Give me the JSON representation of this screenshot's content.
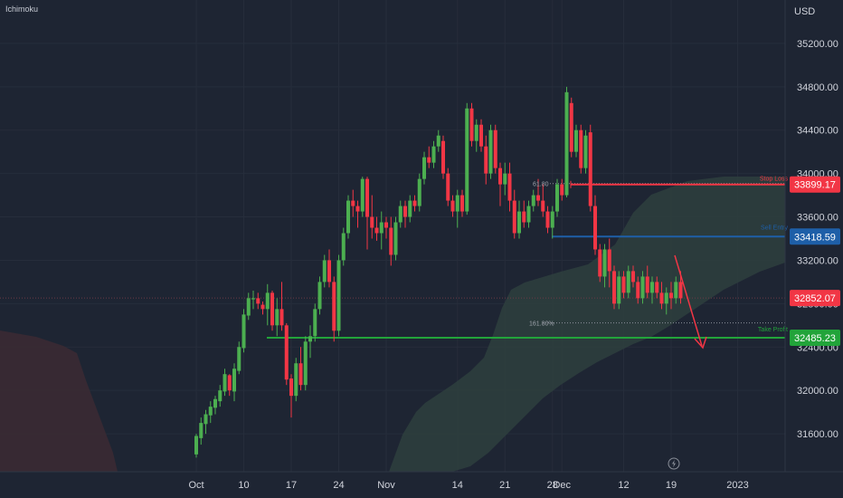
{
  "indicator_name": "Ichimoku",
  "currency": "USD",
  "chart_data": {
    "type": "candlestick",
    "y_range": [
      31250,
      35600
    ],
    "y_ticks": [
      "35200.00",
      "34800.00",
      "34400.00",
      "34000.00",
      "33600.00",
      "33200.00",
      "32800.00",
      "32400.00",
      "32000.00",
      "31600.00"
    ],
    "y_tick_values": [
      35200,
      34800,
      34400,
      34000,
      33600,
      33200,
      32800,
      32400,
      32000,
      31600
    ],
    "x_ticks": [
      {
        "label": "Oct",
        "bar": 0
      },
      {
        "label": "10",
        "bar": 10
      },
      {
        "label": "17",
        "bar": 20
      },
      {
        "label": "24",
        "bar": 30
      },
      {
        "label": "Nov",
        "bar": 40
      },
      {
        "label": "14",
        "bar": 55
      },
      {
        "label": "21",
        "bar": 65
      },
      {
        "label": "28",
        "bar": 75
      },
      {
        "label": "Dec",
        "bar": 77
      },
      {
        "label": "12",
        "bar": 90
      },
      {
        "label": "19",
        "bar": 100
      },
      {
        "label": "2023",
        "bar": 114
      }
    ],
    "candles": [
      [
        31410,
        31600,
        31380,
        31580
      ],
      [
        31560,
        31750,
        31500,
        31700
      ],
      [
        31690,
        31820,
        31600,
        31780
      ],
      [
        31770,
        31900,
        31700,
        31850
      ],
      [
        31840,
        31950,
        31780,
        31920
      ],
      [
        31900,
        32050,
        31850,
        32000
      ],
      [
        31990,
        32200,
        31950,
        32150
      ],
      [
        32140,
        32150,
        31950,
        32000
      ],
      [
        31990,
        32250,
        31900,
        32200
      ],
      [
        32180,
        32450,
        32150,
        32400
      ],
      [
        32390,
        32750,
        32350,
        32700
      ],
      [
        32690,
        32900,
        32650,
        32850
      ],
      [
        32840,
        32920,
        32750,
        32850
      ],
      [
        32850,
        32900,
        32750,
        32800
      ],
      [
        32790,
        32820,
        32700,
        32750
      ],
      [
        32750,
        32980,
        32600,
        32900
      ],
      [
        32900,
        32920,
        32550,
        32600
      ],
      [
        32600,
        32850,
        32500,
        32750
      ],
      [
        32750,
        33000,
        32550,
        32600
      ],
      [
        32600,
        32620,
        32050,
        32100
      ],
      [
        32110,
        32150,
        31750,
        31950
      ],
      [
        31950,
        32300,
        31900,
        32250
      ],
      [
        32250,
        32400,
        32000,
        32050
      ],
      [
        32050,
        32500,
        32000,
        32450
      ],
      [
        32450,
        32600,
        32300,
        32500
      ],
      [
        32500,
        32800,
        32450,
        32750
      ],
      [
        32750,
        33050,
        32700,
        33000
      ],
      [
        33000,
        33250,
        32950,
        33200
      ],
      [
        33200,
        33300,
        32950,
        33000
      ],
      [
        33000,
        33050,
        32450,
        32550
      ],
      [
        32550,
        33250,
        32500,
        33200
      ],
      [
        33200,
        33500,
        33150,
        33450
      ],
      [
        33450,
        33800,
        33400,
        33750
      ],
      [
        33750,
        33850,
        33600,
        33700
      ],
      [
        33700,
        33750,
        33500,
        33650
      ],
      [
        33650,
        33970,
        33600,
        33950
      ],
      [
        33950,
        33970,
        33300,
        33600
      ],
      [
        33600,
        33800,
        33400,
        33500
      ],
      [
        33500,
        33600,
        33380,
        33450
      ],
      [
        33450,
        33650,
        33300,
        33550
      ],
      [
        33550,
        33600,
        33400,
        33500
      ],
      [
        33500,
        33600,
        33150,
        33250
      ],
      [
        33250,
        33600,
        33200,
        33550
      ],
      [
        33550,
        33750,
        33500,
        33700
      ],
      [
        33700,
        33750,
        33500,
        33600
      ],
      [
        33600,
        33800,
        33550,
        33750
      ],
      [
        33750,
        33800,
        33650,
        33700
      ],
      [
        33700,
        34000,
        33650,
        33950
      ],
      [
        33950,
        34200,
        33900,
        34150
      ],
      [
        34150,
        34250,
        34050,
        34100
      ],
      [
        34100,
        34300,
        34050,
        34250
      ],
      [
        34250,
        34400,
        34200,
        34350
      ],
      [
        34300,
        34350,
        33950,
        34000
      ],
      [
        34000,
        34050,
        33700,
        33750
      ],
      [
        33750,
        33800,
        33600,
        33650
      ],
      [
        33650,
        33850,
        33500,
        33800
      ],
      [
        33800,
        33850,
        33600,
        33650
      ],
      [
        33650,
        34650,
        33620,
        34600
      ],
      [
        34600,
        34650,
        34250,
        34300
      ],
      [
        34300,
        34500,
        34200,
        34450
      ],
      [
        34450,
        34500,
        34200,
        34250
      ],
      [
        34250,
        34350,
        33900,
        34000
      ],
      [
        34000,
        34450,
        33950,
        34400
      ],
      [
        34400,
        34450,
        34000,
        34050
      ],
      [
        34050,
        34100,
        33700,
        33900
      ],
      [
        33900,
        34100,
        33800,
        34000
      ],
      [
        34000,
        34100,
        33650,
        33750
      ],
      [
        33750,
        33850,
        33400,
        33450
      ],
      [
        33450,
        33750,
        33400,
        33650
      ],
      [
        33650,
        33750,
        33500,
        33550
      ],
      [
        33550,
        33750,
        33500,
        33700
      ],
      [
        33700,
        33850,
        33650,
        33800
      ],
      [
        33800,
        33950,
        33700,
        33750
      ],
      [
        33750,
        33900,
        33600,
        33650
      ],
      [
        33650,
        33700,
        33450,
        33500
      ],
      [
        33500,
        33700,
        33400,
        33650
      ],
      [
        33650,
        33950,
        33600,
        33900
      ],
      [
        33900,
        33950,
        33750,
        33800
      ],
      [
        33800,
        34800,
        33780,
        34750
      ],
      [
        34650,
        34700,
        34150,
        34200
      ],
      [
        34200,
        34450,
        34150,
        34400
      ],
      [
        34400,
        34450,
        34000,
        34050
      ],
      [
        34050,
        34400,
        34000,
        34350
      ],
      [
        34380,
        34450,
        33650,
        33700
      ],
      [
        33700,
        33800,
        33250,
        33300
      ],
      [
        33300,
        33350,
        33000,
        33050
      ],
      [
        33050,
        33350,
        32950,
        33300
      ],
      [
        33300,
        33400,
        32950,
        33100
      ],
      [
        33100,
        33150,
        32750,
        32800
      ],
      [
        32800,
        33100,
        32750,
        33050
      ],
      [
        33050,
        33100,
        32850,
        32900
      ],
      [
        32900,
        33150,
        32850,
        33100
      ],
      [
        33100,
        33150,
        32950,
        33000
      ],
      [
        33000,
        33050,
        32800,
        32850
      ],
      [
        32850,
        33100,
        32800,
        33050
      ],
      [
        33050,
        33150,
        32850,
        32900
      ],
      [
        32900,
        33050,
        32800,
        33000
      ],
      [
        33000,
        33050,
        32850,
        32900
      ],
      [
        32900,
        33000,
        32750,
        32800
      ],
      [
        32800,
        32950,
        32700,
        32900
      ],
      [
        32900,
        33000,
        32750,
        32850
      ],
      [
        32850,
        33050,
        32800,
        33000
      ],
      [
        33000,
        33100,
        32800,
        32850
      ]
    ],
    "levels": {
      "stop_loss": {
        "label": "Stop Loss",
        "value": 33899.17,
        "text": "33899.17",
        "color": "#f23645"
      },
      "sell_entry": {
        "label": "Sell Entry",
        "value": 33418.59,
        "text": "33418.59",
        "color": "#1e5fa8"
      },
      "take_profit": {
        "label": "Take Profit",
        "value": 32485.23,
        "text": "32485.23",
        "color": "#22a43a"
      },
      "last_price": {
        "value": 32852.07,
        "text": "32852.07",
        "color": "#f23645"
      }
    },
    "fib_labels": {
      "upper": "61.80",
      "lower": "161.80%"
    },
    "colors": {
      "up": "#4caf50",
      "down": "#f23645",
      "background": "#1e2533"
    }
  }
}
